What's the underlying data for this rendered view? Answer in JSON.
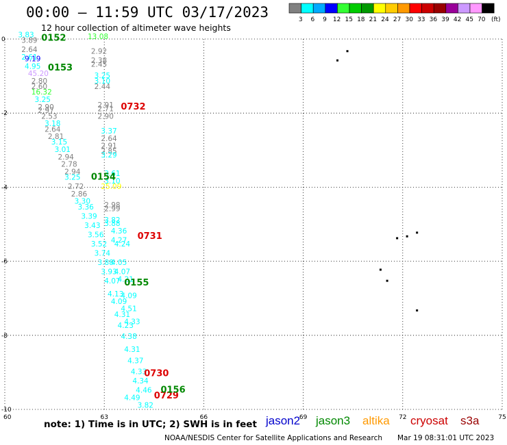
{
  "header": {
    "title": "00:00 – 11:59 UTC 03/17/2023",
    "subtitle": "12 hour collection of altimeter wave heights"
  },
  "legend": {
    "unit": "(ft)",
    "bins": [
      {
        "label": "3",
        "color": "#808080"
      },
      {
        "label": "6",
        "color": "#00ffff"
      },
      {
        "label": "9",
        "color": "#00aaff"
      },
      {
        "label": "12",
        "color": "#0000ff"
      },
      {
        "label": "15",
        "color": "#33ff33"
      },
      {
        "label": "18",
        "color": "#00cc00"
      },
      {
        "label": "21",
        "color": "#009900"
      },
      {
        "label": "24",
        "color": "#ffff00"
      },
      {
        "label": "27",
        "color": "#ffcc00"
      },
      {
        "label": "30",
        "color": "#ff9900"
      },
      {
        "label": "33",
        "color": "#ff0000"
      },
      {
        "label": "36",
        "color": "#cc0000"
      },
      {
        "label": "39",
        "color": "#990000"
      },
      {
        "label": "42",
        "color": "#990099"
      },
      {
        "label": "45",
        "color": "#cc99ff"
      },
      {
        "label": "70",
        "color": "#ff99ff"
      },
      {
        "label": "",
        "color": "#000000"
      }
    ]
  },
  "map": {
    "x_ticks": [
      "60",
      "63",
      "66",
      "69",
      "72",
      "75"
    ],
    "y_ticks": [
      "0",
      "-2",
      "-4",
      "-6",
      "-8",
      "-10"
    ],
    "lon_range": [
      60,
      75
    ],
    "lat_range": [
      0,
      -10
    ]
  },
  "chart_data": {
    "type": "scatter",
    "xlabel": "",
    "ylabel": "",
    "xlim": [
      60,
      75
    ],
    "ylim": [
      -10,
      0
    ],
    "passes": [
      {
        "satellite": "jason3",
        "time": "0152",
        "lon": 61.1,
        "lat": -0.05
      },
      {
        "satellite": "jason3",
        "time": "0153",
        "lon": 61.3,
        "lat": -0.85
      },
      {
        "satellite": "jason3",
        "time": "0154",
        "lon": 62.6,
        "lat": -3.8
      },
      {
        "satellite": "jason3",
        "time": "0155",
        "lon": 63.6,
        "lat": -6.65
      },
      {
        "satellite": "cryosat",
        "time": "0732",
        "lon": 63.5,
        "lat": -1.9
      },
      {
        "satellite": "cryosat",
        "time": "0731",
        "lon": 64.0,
        "lat": -5.4
      },
      {
        "satellite": "cryosat",
        "time": "0730",
        "lon": 64.2,
        "lat": -9.1
      },
      {
        "satellite": "cryosat",
        "time": "0729",
        "lon": 64.5,
        "lat": -9.7
      },
      {
        "satellite": "jason3",
        "time": "0156",
        "lon": 64.7,
        "lat": -9.55
      }
    ],
    "readings": [
      {
        "value": "3.83",
        "lon": 60.4,
        "lat": 0.05,
        "color": "#00ffff"
      },
      {
        "value": "3.89",
        "lon": 60.5,
        "lat": -0.1,
        "color": "#808080"
      },
      {
        "value": "2.64",
        "lon": 60.5,
        "lat": -0.35,
        "color": "#808080"
      },
      {
        "value": "2.61",
        "lon": 60.5,
        "lat": -0.55,
        "color": "#00ffff"
      },
      {
        "value": "9.19",
        "lon": 60.6,
        "lat": -0.6,
        "color": "#0000ff"
      },
      {
        "value": "4.95",
        "lon": 60.6,
        "lat": -0.8,
        "color": "#00ffff"
      },
      {
        "value": "45.20",
        "lon": 60.7,
        "lat": -1.0,
        "color": "#cc99ff"
      },
      {
        "value": "2.80",
        "lon": 60.8,
        "lat": -1.2,
        "color": "#808080"
      },
      {
        "value": "2.60",
        "lon": 60.8,
        "lat": -1.35,
        "color": "#808080"
      },
      {
        "value": "16.32",
        "lon": 60.8,
        "lat": -1.5,
        "color": "#33ff33"
      },
      {
        "value": "3.25",
        "lon": 60.9,
        "lat": -1.7,
        "color": "#00ffff"
      },
      {
        "value": "2.90",
        "lon": 61.0,
        "lat": -1.9,
        "color": "#808080"
      },
      {
        "value": "2.97",
        "lon": 61.0,
        "lat": -2.0,
        "color": "#808080"
      },
      {
        "value": "2.53",
        "lon": 61.1,
        "lat": -2.15,
        "color": "#808080"
      },
      {
        "value": "3.18",
        "lon": 61.2,
        "lat": -2.35,
        "color": "#00ffff"
      },
      {
        "value": "2.64",
        "lon": 61.2,
        "lat": -2.5,
        "color": "#808080"
      },
      {
        "value": "2.81",
        "lon": 61.3,
        "lat": -2.7,
        "color": "#808080"
      },
      {
        "value": "3.15",
        "lon": 61.4,
        "lat": -2.85,
        "color": "#00ffff"
      },
      {
        "value": "3.01",
        "lon": 61.5,
        "lat": -3.05,
        "color": "#00ffff"
      },
      {
        "value": "2.94",
        "lon": 61.6,
        "lat": -3.25,
        "color": "#808080"
      },
      {
        "value": "2.78",
        "lon": 61.7,
        "lat": -3.45,
        "color": "#808080"
      },
      {
        "value": "2.94",
        "lon": 61.8,
        "lat": -3.65,
        "color": "#808080"
      },
      {
        "value": "3.25",
        "lon": 61.8,
        "lat": -3.8,
        "color": "#00ffff"
      },
      {
        "value": "2.72",
        "lon": 61.9,
        "lat": -4.05,
        "color": "#808080"
      },
      {
        "value": "2.86",
        "lon": 62.0,
        "lat": -4.25,
        "color": "#808080"
      },
      {
        "value": "3.30",
        "lon": 62.1,
        "lat": -4.45,
        "color": "#00ffff"
      },
      {
        "value": "3.36",
        "lon": 62.2,
        "lat": -4.6,
        "color": "#00ffff"
      },
      {
        "value": "3.39",
        "lon": 62.3,
        "lat": -4.85,
        "color": "#00ffff"
      },
      {
        "value": "3.43",
        "lon": 62.4,
        "lat": -5.1,
        "color": "#00ffff"
      },
      {
        "value": "3.56",
        "lon": 62.5,
        "lat": -5.35,
        "color": "#00ffff"
      },
      {
        "value": "3.52",
        "lon": 62.6,
        "lat": -5.6,
        "color": "#00ffff"
      },
      {
        "value": "3.74",
        "lon": 62.7,
        "lat": -5.85,
        "color": "#00ffff"
      },
      {
        "value": "3.88",
        "lon": 62.8,
        "lat": -6.1,
        "color": "#00ffff"
      },
      {
        "value": "3.93",
        "lon": 62.9,
        "lat": -6.35,
        "color": "#00ffff"
      },
      {
        "value": "4.07",
        "lon": 63.0,
        "lat": -6.6,
        "color": "#00ffff"
      },
      {
        "value": "4.13",
        "lon": 63.1,
        "lat": -6.95,
        "color": "#00ffff"
      },
      {
        "value": "4.09",
        "lon": 63.2,
        "lat": -7.15,
        "color": "#00ffff"
      },
      {
        "value": "4.31",
        "lon": 63.3,
        "lat": -7.5,
        "color": "#00ffff"
      },
      {
        "value": "4.23",
        "lon": 63.4,
        "lat": -7.8,
        "color": "#00ffff"
      },
      {
        "value": "4.38",
        "lon": 63.5,
        "lat": -8.1,
        "color": "#00ffff"
      },
      {
        "value": "4.31",
        "lon": 63.6,
        "lat": -8.45,
        "color": "#00ffff"
      },
      {
        "value": "4.37",
        "lon": 63.7,
        "lat": -8.75,
        "color": "#00ffff"
      },
      {
        "value": "4.33",
        "lon": 63.8,
        "lat": -9.05,
        "color": "#00ffff"
      },
      {
        "value": "4.34",
        "lon": 63.85,
        "lat": -9.3,
        "color": "#00ffff"
      },
      {
        "value": "4.46",
        "lon": 63.95,
        "lat": -9.55,
        "color": "#00ffff"
      },
      {
        "value": "4.49",
        "lon": 63.6,
        "lat": -9.75,
        "color": "#00ffff"
      },
      {
        "value": "3.82",
        "lon": 64.0,
        "lat": -9.95,
        "color": "#00ffff"
      },
      {
        "value": "13.08",
        "lon": 62.5,
        "lat": 0.0,
        "color": "#33ff33"
      },
      {
        "value": "2.92",
        "lon": 62.6,
        "lat": -0.4,
        "color": "#808080"
      },
      {
        "value": "2.38",
        "lon": 62.6,
        "lat": -0.65,
        "color": "#808080"
      },
      {
        "value": "2.45",
        "lon": 62.6,
        "lat": -0.75,
        "color": "#808080"
      },
      {
        "value": "3.25",
        "lon": 62.7,
        "lat": -1.05,
        "color": "#00ffff"
      },
      {
        "value": "3.10",
        "lon": 62.7,
        "lat": -1.2,
        "color": "#00ffff"
      },
      {
        "value": "2.44",
        "lon": 62.7,
        "lat": -1.35,
        "color": "#808080"
      },
      {
        "value": "2.91",
        "lon": 62.8,
        "lat": -1.85,
        "color": "#808080"
      },
      {
        "value": "2.71",
        "lon": 62.8,
        "lat": -1.95,
        "color": "#808080"
      },
      {
        "value": "2.90",
        "lon": 62.8,
        "lat": -2.15,
        "color": "#808080"
      },
      {
        "value": "3.37",
        "lon": 62.9,
        "lat": -2.55,
        "color": "#00ffff"
      },
      {
        "value": "2.64",
        "lon": 62.9,
        "lat": -2.75,
        "color": "#808080"
      },
      {
        "value": "2.91",
        "lon": 62.9,
        "lat": -2.95,
        "color": "#808080"
      },
      {
        "value": "2.85",
        "lon": 62.9,
        "lat": -3.1,
        "color": "#808080"
      },
      {
        "value": "3.29",
        "lon": 62.9,
        "lat": -3.2,
        "color": "#00ffff"
      },
      {
        "value": "3.61",
        "lon": 63.0,
        "lat": -3.7,
        "color": "#00ffff"
      },
      {
        "value": "3.10",
        "lon": 63.0,
        "lat": -3.9,
        "color": "#00ffff"
      },
      {
        "value": "25.09",
        "lon": 62.9,
        "lat": -4.05,
        "color": "#ffff00"
      },
      {
        "value": "2.98",
        "lon": 63.0,
        "lat": -4.55,
        "color": "#808080"
      },
      {
        "value": "2.99",
        "lon": 63.0,
        "lat": -4.65,
        "color": "#808080"
      },
      {
        "value": "3.82",
        "lon": 63.0,
        "lat": -4.95,
        "color": "#00ffff"
      },
      {
        "value": "3.88",
        "lon": 63.0,
        "lat": -5.05,
        "color": "#00ffff"
      },
      {
        "value": "4.36",
        "lon": 63.2,
        "lat": -5.25,
        "color": "#00ffff"
      },
      {
        "value": "4.27",
        "lon": 63.2,
        "lat": -5.5,
        "color": "#00ffff"
      },
      {
        "value": "4.24",
        "lon": 63.3,
        "lat": -5.6,
        "color": "#00ffff"
      },
      {
        "value": "4.05",
        "lon": 63.2,
        "lat": -6.1,
        "color": "#00ffff"
      },
      {
        "value": "4.07",
        "lon": 63.3,
        "lat": -6.35,
        "color": "#00ffff"
      },
      {
        "value": "4.21",
        "lon": 63.4,
        "lat": -6.55,
        "color": "#00ffff"
      },
      {
        "value": "4.09",
        "lon": 63.5,
        "lat": -7.0,
        "color": "#00ffff"
      },
      {
        "value": "4.51",
        "lon": 63.5,
        "lat": -7.35,
        "color": "#00ffff"
      },
      {
        "value": "4.33",
        "lon": 63.6,
        "lat": -7.7,
        "color": "#00ffff"
      }
    ],
    "islands": [
      {
        "lon": 70.0,
        "lat": -0.55
      },
      {
        "lon": 70.3,
        "lat": -0.3
      },
      {
        "lon": 71.8,
        "lat": -5.35
      },
      {
        "lon": 72.1,
        "lat": -5.3
      },
      {
        "lon": 72.4,
        "lat": -5.2
      },
      {
        "lon": 71.3,
        "lat": -6.2
      },
      {
        "lon": 71.5,
        "lat": -6.5
      },
      {
        "lon": 72.4,
        "lat": -7.3
      }
    ]
  },
  "missions": [
    {
      "name": "jason2",
      "color": "#0000cc"
    },
    {
      "name": "jason3",
      "color": "#008800"
    },
    {
      "name": "altika",
      "color": "#ff9900"
    },
    {
      "name": "cryosat",
      "color": "#cc0000"
    },
    {
      "name": "s3a",
      "color": "#990000"
    }
  ],
  "footer": {
    "note": "note:  1) Time is in UTC;  2) SWH is in feet",
    "credit": "NOAA/NESDIS Center for Satellite Applications and Research",
    "stamp": "Mar 19 08:31:01 UTC 2023"
  },
  "pass_colors": {
    "jason3": "#008800",
    "cryosat": "#dd0000"
  }
}
